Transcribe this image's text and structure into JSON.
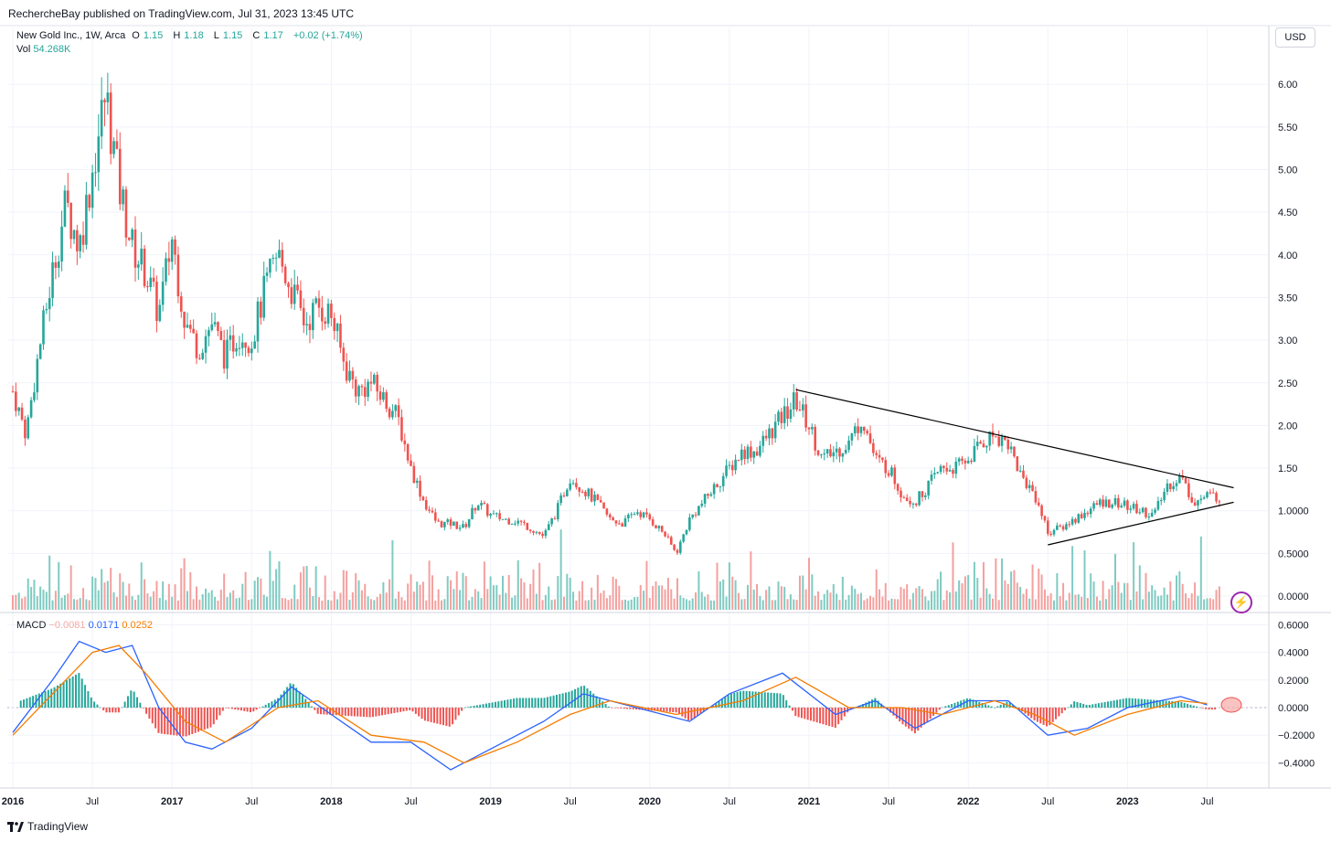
{
  "header": {
    "publisher": "RechercheBay published on TradingView.com, Jul 31, 2023 13:45 UTC"
  },
  "legend": {
    "symbol": "New Gold Inc., 1W, Arca",
    "o_label": "O",
    "o": "1.15",
    "h_label": "H",
    "h": "1.18",
    "l_label": "L",
    "l": "1.15",
    "c_label": "C",
    "c": "1.17",
    "change": "+0.02 (+1.74%)",
    "vol_label": "Vol",
    "vol": "54.268K"
  },
  "macd_legend": {
    "label": "MACD",
    "hist": "−0.0081",
    "macd": "0.0171",
    "signal": "0.0252"
  },
  "currency_button": "USD",
  "footer": {
    "brand": "TradingView"
  },
  "colors": {
    "up": "#26a69a",
    "down": "#ef5350",
    "macd_line": "#2962ff",
    "signal_line": "#f57c00",
    "grid": "#f0f3fa",
    "trendline": "#000000"
  },
  "chart_data": [
    {
      "type": "candlestick",
      "title": "New Gold Inc., 1W, Arca",
      "y_axis_labels": [
        "6.00",
        "5.50",
        "5.00",
        "4.50",
        "4.00",
        "3.50",
        "3.00",
        "2.50",
        "2.00",
        "1.50",
        "1.0000",
        "0.5000",
        "0.0000"
      ],
      "y_axis_values": [
        6.0,
        5.5,
        5.0,
        4.5,
        4.0,
        3.5,
        3.0,
        2.5,
        2.0,
        1.5,
        1.0,
        0.5,
        0.0
      ],
      "x_axis_labels": [
        "2016",
        "Jul",
        "2017",
        "Jul",
        "2018",
        "Jul",
        "2019",
        "Jul",
        "2020",
        "Jul",
        "2021",
        "Jul",
        "2022",
        "Jul",
        "2023",
        "Jul"
      ],
      "x_axis_dates": [
        "2016-01",
        "2016-07",
        "2017-01",
        "2017-07",
        "2018-01",
        "2018-07",
        "2019-01",
        "2019-07",
        "2020-01",
        "2020-07",
        "2021-01",
        "2021-07",
        "2022-01",
        "2022-07",
        "2023-01",
        "2023-07"
      ],
      "close_path": [
        {
          "date": "2016-01",
          "value": 2.4
        },
        {
          "date": "2016-02",
          "value": 1.9
        },
        {
          "date": "2016-03",
          "value": 2.9
        },
        {
          "date": "2016-04",
          "value": 3.8
        },
        {
          "date": "2016-05",
          "value": 4.6
        },
        {
          "date": "2016-06",
          "value": 4.1
        },
        {
          "date": "2016-07",
          "value": 5.0
        },
        {
          "date": "2016-08",
          "value": 5.9
        },
        {
          "date": "2016-09",
          "value": 4.8
        },
        {
          "date": "2016-10",
          "value": 4.1
        },
        {
          "date": "2016-11",
          "value": 3.8
        },
        {
          "date": "2016-12",
          "value": 3.3
        },
        {
          "date": "2017-01",
          "value": 4.2
        },
        {
          "date": "2017-02",
          "value": 3.2
        },
        {
          "date": "2017-03",
          "value": 2.9
        },
        {
          "date": "2017-04",
          "value": 3.2
        },
        {
          "date": "2017-05",
          "value": 2.8
        },
        {
          "date": "2017-06",
          "value": 3.1
        },
        {
          "date": "2017-07",
          "value": 3.0
        },
        {
          "date": "2017-08",
          "value": 3.6
        },
        {
          "date": "2017-09",
          "value": 4.0
        },
        {
          "date": "2017-10",
          "value": 3.6
        },
        {
          "date": "2017-11",
          "value": 3.2
        },
        {
          "date": "2017-12",
          "value": 3.4
        },
        {
          "date": "2018-01",
          "value": 3.3
        },
        {
          "date": "2018-02",
          "value": 2.7
        },
        {
          "date": "2018-03",
          "value": 2.4
        },
        {
          "date": "2018-04",
          "value": 2.5
        },
        {
          "date": "2018-05",
          "value": 2.3
        },
        {
          "date": "2018-06",
          "value": 2.1
        },
        {
          "date": "2018-07",
          "value": 1.5
        },
        {
          "date": "2018-08",
          "value": 1.1
        },
        {
          "date": "2018-09",
          "value": 0.85
        },
        {
          "date": "2018-10",
          "value": 0.85
        },
        {
          "date": "2018-11",
          "value": 0.8
        },
        {
          "date": "2018-12",
          "value": 1.1
        },
        {
          "date": "2019-01",
          "value": 0.95
        },
        {
          "date": "2019-02",
          "value": 0.9
        },
        {
          "date": "2019-03",
          "value": 0.88
        },
        {
          "date": "2019-04",
          "value": 0.8
        },
        {
          "date": "2019-05",
          "value": 0.7
        },
        {
          "date": "2019-06",
          "value": 1.0
        },
        {
          "date": "2019-07",
          "value": 1.4
        },
        {
          "date": "2019-08",
          "value": 1.25
        },
        {
          "date": "2019-09",
          "value": 1.1
        },
        {
          "date": "2019-10",
          "value": 0.9
        },
        {
          "date": "2019-11",
          "value": 0.85
        },
        {
          "date": "2019-12",
          "value": 1.0
        },
        {
          "date": "2020-01",
          "value": 0.9
        },
        {
          "date": "2020-02",
          "value": 0.75
        },
        {
          "date": "2020-03",
          "value": 0.5
        },
        {
          "date": "2020-04",
          "value": 0.9
        },
        {
          "date": "2020-05",
          "value": 1.1
        },
        {
          "date": "2020-06",
          "value": 1.3
        },
        {
          "date": "2020-07",
          "value": 1.5
        },
        {
          "date": "2020-08",
          "value": 1.7
        },
        {
          "date": "2020-09",
          "value": 1.7
        },
        {
          "date": "2020-10",
          "value": 1.9
        },
        {
          "date": "2020-11",
          "value": 2.1
        },
        {
          "date": "2020-12",
          "value": 2.3
        },
        {
          "date": "2021-01",
          "value": 2.0
        },
        {
          "date": "2021-02",
          "value": 1.6
        },
        {
          "date": "2021-03",
          "value": 1.7
        },
        {
          "date": "2021-04",
          "value": 1.8
        },
        {
          "date": "2021-05",
          "value": 2.1
        },
        {
          "date": "2021-06",
          "value": 1.6
        },
        {
          "date": "2021-07",
          "value": 1.5
        },
        {
          "date": "2021-08",
          "value": 1.2
        },
        {
          "date": "2021-09",
          "value": 1.1
        },
        {
          "date": "2021-10",
          "value": 1.3
        },
        {
          "date": "2021-11",
          "value": 1.5
        },
        {
          "date": "2021-12",
          "value": 1.5
        },
        {
          "date": "2022-01",
          "value": 1.6
        },
        {
          "date": "2022-02",
          "value": 1.8
        },
        {
          "date": "2022-03",
          "value": 1.9
        },
        {
          "date": "2022-04",
          "value": 1.8
        },
        {
          "date": "2022-05",
          "value": 1.4
        },
        {
          "date": "2022-06",
          "value": 1.2
        },
        {
          "date": "2022-07",
          "value": 0.75
        },
        {
          "date": "2022-08",
          "value": 0.8
        },
        {
          "date": "2022-09",
          "value": 0.9
        },
        {
          "date": "2022-10",
          "value": 1.0
        },
        {
          "date": "2022-11",
          "value": 1.1
        },
        {
          "date": "2022-12",
          "value": 1.1
        },
        {
          "date": "2023-01",
          "value": 1.05
        },
        {
          "date": "2023-02",
          "value": 1.0
        },
        {
          "date": "2023-03",
          "value": 0.95
        },
        {
          "date": "2023-04",
          "value": 1.3
        },
        {
          "date": "2023-05",
          "value": 1.4
        },
        {
          "date": "2023-06",
          "value": 1.1
        },
        {
          "date": "2023-07",
          "value": 1.17
        }
      ],
      "volume_note": "weekly volume histogram along bottom of price pane",
      "trendlines": [
        {
          "name": "upper-trendline",
          "from": {
            "date": "2020-12",
            "value": 2.42
          },
          "to": {
            "date": "2023-09",
            "value": 1.27
          }
        },
        {
          "name": "lower-trendline",
          "from": {
            "date": "2022-07",
            "value": 0.6
          },
          "to": {
            "date": "2023-09",
            "value": 1.1
          }
        }
      ]
    },
    {
      "type": "line",
      "title": "MACD",
      "y_axis_labels": [
        "0.6000",
        "0.4000",
        "0.2000",
        "0.0000",
        "−0.2000",
        "−0.4000"
      ],
      "y_axis_values": [
        0.6,
        0.4,
        0.2,
        0.0,
        -0.2,
        -0.4
      ],
      "series": [
        {
          "name": "0.0171",
          "key": "macd",
          "values": [
            {
              "date": "2016-01",
              "value": -0.18
            },
            {
              "date": "2016-04",
              "value": 0.2
            },
            {
              "date": "2016-06",
              "value": 0.48
            },
            {
              "date": "2016-08",
              "value": 0.4
            },
            {
              "date": "2016-10",
              "value": 0.45
            },
            {
              "date": "2016-12",
              "value": 0.0
            },
            {
              "date": "2017-02",
              "value": -0.25
            },
            {
              "date": "2017-04",
              "value": -0.3
            },
            {
              "date": "2017-07",
              "value": -0.15
            },
            {
              "date": "2017-10",
              "value": 0.15
            },
            {
              "date": "2018-01",
              "value": -0.05
            },
            {
              "date": "2018-04",
              "value": -0.25
            },
            {
              "date": "2018-07",
              "value": -0.25
            },
            {
              "date": "2018-10",
              "value": -0.45
            },
            {
              "date": "2019-01",
              "value": -0.3
            },
            {
              "date": "2019-05",
              "value": -0.1
            },
            {
              "date": "2019-08",
              "value": 0.1
            },
            {
              "date": "2019-12",
              "value": 0.0
            },
            {
              "date": "2020-04",
              "value": -0.1
            },
            {
              "date": "2020-07",
              "value": 0.1
            },
            {
              "date": "2020-11",
              "value": 0.25
            },
            {
              "date": "2021-03",
              "value": -0.05
            },
            {
              "date": "2021-06",
              "value": 0.05
            },
            {
              "date": "2021-09",
              "value": -0.15
            },
            {
              "date": "2022-01",
              "value": 0.05
            },
            {
              "date": "2022-04",
              "value": 0.05
            },
            {
              "date": "2022-07",
              "value": -0.2
            },
            {
              "date": "2022-10",
              "value": -0.15
            },
            {
              "date": "2023-01",
              "value": 0.0
            },
            {
              "date": "2023-05",
              "value": 0.08
            },
            {
              "date": "2023-07",
              "value": 0.02
            }
          ]
        },
        {
          "name": "0.0252",
          "key": "signal",
          "values": [
            {
              "date": "2016-01",
              "value": -0.2
            },
            {
              "date": "2016-04",
              "value": 0.1
            },
            {
              "date": "2016-07",
              "value": 0.4
            },
            {
              "date": "2016-09",
              "value": 0.45
            },
            {
              "date": "2016-11",
              "value": 0.25
            },
            {
              "date": "2017-02",
              "value": -0.1
            },
            {
              "date": "2017-05",
              "value": -0.25
            },
            {
              "date": "2017-09",
              "value": 0.0
            },
            {
              "date": "2017-12",
              "value": 0.05
            },
            {
              "date": "2018-04",
              "value": -0.2
            },
            {
              "date": "2018-08",
              "value": -0.25
            },
            {
              "date": "2018-11",
              "value": -0.4
            },
            {
              "date": "2019-03",
              "value": -0.25
            },
            {
              "date": "2019-07",
              "value": -0.05
            },
            {
              "date": "2019-10",
              "value": 0.05
            },
            {
              "date": "2020-03",
              "value": -0.05
            },
            {
              "date": "2020-08",
              "value": 0.05
            },
            {
              "date": "2020-12",
              "value": 0.22
            },
            {
              "date": "2021-04",
              "value": 0.0
            },
            {
              "date": "2021-08",
              "value": 0.0
            },
            {
              "date": "2021-11",
              "value": -0.05
            },
            {
              "date": "2022-03",
              "value": 0.05
            },
            {
              "date": "2022-06",
              "value": -0.05
            },
            {
              "date": "2022-09",
              "value": -0.2
            },
            {
              "date": "2023-01",
              "value": -0.05
            },
            {
              "date": "2023-05",
              "value": 0.05
            },
            {
              "date": "2023-07",
              "value": 0.03
            }
          ]
        }
      ]
    }
  ]
}
